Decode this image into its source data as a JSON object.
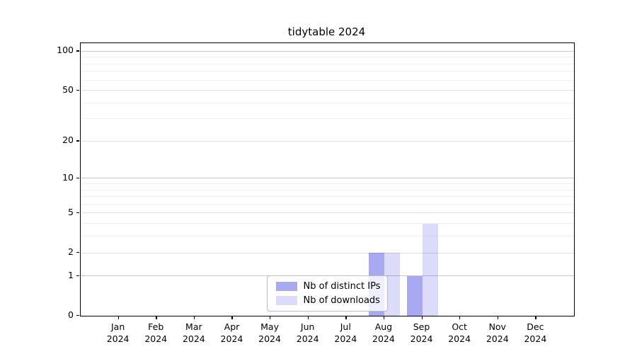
{
  "chart_data": {
    "type": "bar",
    "title": "tidytable 2024",
    "categories": [
      "Jan 2024",
      "Feb 2024",
      "Mar 2024",
      "Apr 2024",
      "May 2024",
      "Jun 2024",
      "Jul 2024",
      "Aug 2024",
      "Sep 2024",
      "Oct 2024",
      "Nov 2024",
      "Dec 2024"
    ],
    "series": [
      {
        "name": "Nb of distinct IPs",
        "color": "#a9a9f2",
        "values": [
          0,
          0,
          0,
          0,
          0,
          0,
          0,
          2,
          1,
          0,
          0,
          0
        ]
      },
      {
        "name": "Nb of downloads",
        "color": "#dcdcfa",
        "values": [
          0,
          0,
          0,
          0,
          0,
          0,
          0,
          2,
          4,
          0,
          0,
          0
        ]
      }
    ],
    "xlabel": "",
    "ylabel": "",
    "y_scale": "log10(value+1)",
    "ylim": [
      0,
      115
    ],
    "y_ticks": [
      0,
      1,
      2,
      5,
      10,
      20,
      50,
      100
    ],
    "y_grid": {
      "decade": [
        1,
        10,
        100
      ],
      "labeled": [
        2,
        5,
        20,
        50
      ],
      "minor": [
        3,
        4,
        6,
        7,
        8,
        9,
        30,
        40,
        60,
        70,
        80,
        90
      ]
    },
    "grid_colors": {
      "decade": "#c6c6c6",
      "labeled": "#dfdfdf",
      "minor": "#f1f1f1"
    },
    "legend": {
      "position": "bottom-center",
      "entries": [
        "Nb of distinct IPs",
        "Nb of downloads"
      ]
    },
    "background": "#ffffff",
    "axis_color": "#000000"
  }
}
